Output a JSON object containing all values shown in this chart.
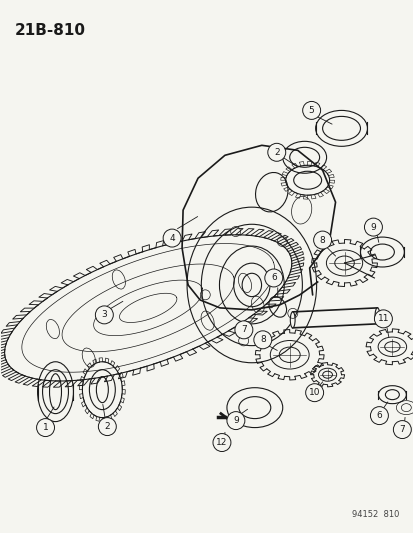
{
  "title": "21B-810",
  "watermark": "94152  810",
  "bg_color": "#f5f5f0",
  "line_color": "#1a1a1a",
  "fig_width": 4.14,
  "fig_height": 5.33,
  "dpi": 100
}
